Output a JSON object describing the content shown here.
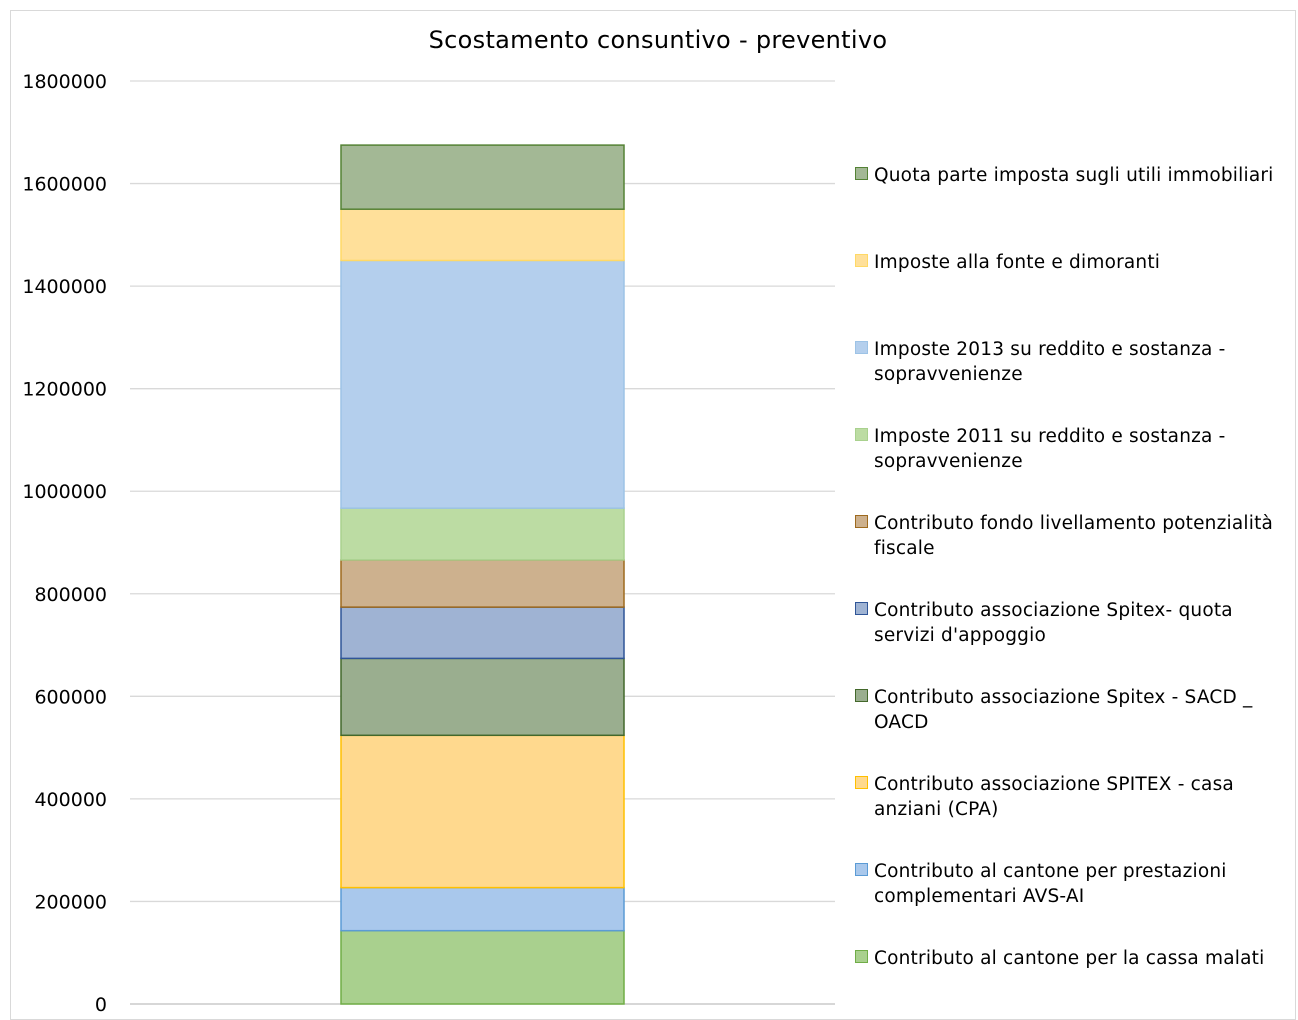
{
  "chart_data": {
    "type": "bar",
    "stacked": true,
    "title": "Scostamento consuntivo - preventivo",
    "xlabel": "",
    "ylabel": "",
    "ylim": [
      0,
      1800000
    ],
    "yticks": [
      "0",
      "200000",
      "400000",
      "600000",
      "800000",
      "1000000",
      "1200000",
      "1400000",
      "1600000",
      "1800000"
    ],
    "grid": true,
    "legend_position": "right",
    "categories": [
      ""
    ],
    "series": [
      {
        "name": "Contributo al cantone per la cassa malati",
        "values": [
          143000
        ],
        "color": "#a9d08e",
        "border": "#70ad47"
      },
      {
        "name": "Contributo al cantone per prestazioni complementari AVS-AI",
        "values": [
          84000
        ],
        "color": "#a9c8ec",
        "border": "#5b9bd5"
      },
      {
        "name": "Contributo associazione SPITEX - casa anziani (CPA)",
        "values": [
          297000
        ],
        "color": "#ffd98e",
        "border": "#ffc000"
      },
      {
        "name": "Contributo associazione Spitex  - SACD _ OACD",
        "values": [
          150000
        ],
        "color": "#9aae8f",
        "border": "#43682b"
      },
      {
        "name": "Contributo associazione Spitex- quota servizi d'appoggio",
        "values": [
          100000
        ],
        "color": "#9fb3d3",
        "border": "#2f5597"
      },
      {
        "name": "Contributo fondo livellamento potenzialità fiscale",
        "values": [
          92000
        ],
        "color": "#cdb18e",
        "border": "#9e6a1e"
      },
      {
        "name": "Imposte 2011 su reddito e sostanza - sopravvenienze",
        "values": [
          101000
        ],
        "color": "#bcdca3",
        "border": "#a9d18e"
      },
      {
        "name": "Imposte 2013 su reddito e sostanza - sopravvenienze",
        "values": [
          483000
        ],
        "color": "#b4cfed",
        "border": "#9dc3e6"
      },
      {
        "name": "Imposte alla fonte e dimoranti",
        "values": [
          100000
        ],
        "color": "#ffe09a",
        "border": "#ffd966"
      },
      {
        "name": "Quota parte imposta sugli utili immobiliari",
        "values": [
          125000
        ],
        "color": "#a3b895",
        "border": "#548235"
      }
    ]
  }
}
